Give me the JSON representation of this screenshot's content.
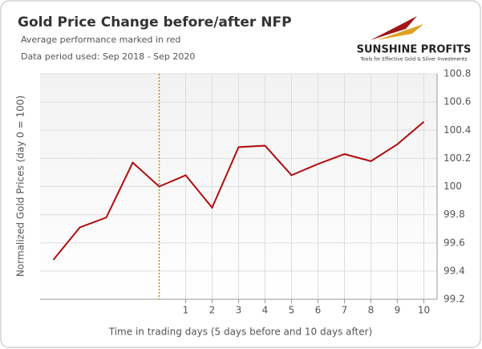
{
  "chart_data": {
    "type": "line",
    "title": "Gold Price Change before/after NFP",
    "subtitle": [
      "Average performance marked in red",
      "Data period used: Sep 2018 - Sep 2020"
    ],
    "logo": {
      "name": "SUNSHINE PROFITS",
      "tagline": "Tools for Effective Gold & Silver Investments"
    },
    "x_label": "Time in trading days  (5 days before and 10 days after)",
    "y_label": "Normalized Gold Prices (day 0 = 100)",
    "x": [
      -4,
      -3,
      -2,
      -1,
      0,
      1,
      2,
      3,
      4,
      5,
      6,
      7,
      8,
      9,
      10
    ],
    "series": [
      {
        "name": "Average performance",
        "color": "#b00d0d",
        "values": [
          99.48,
          99.71,
          99.78,
          100.17,
          100.0,
          100.08,
          99.85,
          100.28,
          100.29,
          100.08,
          100.16,
          100.23,
          100.18,
          100.3,
          100.46
        ]
      }
    ],
    "xlim": [
      -4.5,
      10.5
    ],
    "xticks": [
      1,
      2,
      3,
      4,
      5,
      6,
      7,
      8,
      9,
      10
    ],
    "ylim": [
      99.2,
      100.8
    ],
    "yticks": [
      99.2,
      99.4,
      99.6,
      99.8,
      100,
      100.2,
      100.4,
      100.6,
      100.8
    ],
    "y_axis_side": "right",
    "grid": true,
    "reference_line": {
      "x": 0,
      "color": "#c8860a"
    }
  }
}
